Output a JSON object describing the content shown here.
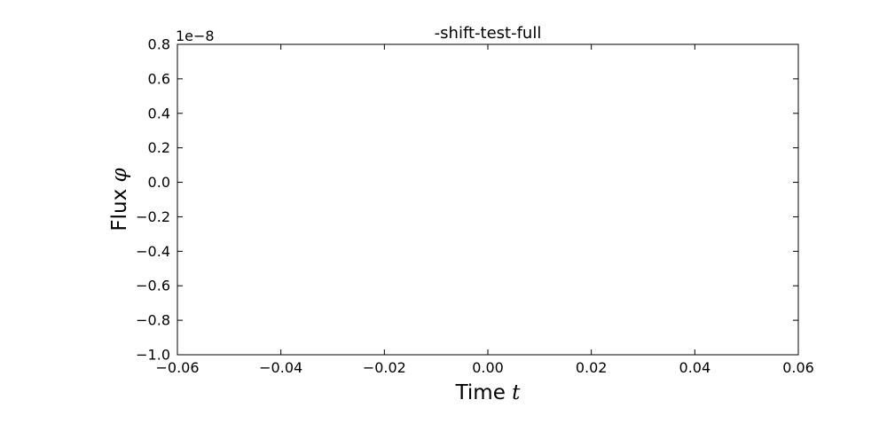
{
  "chart_data": {
    "type": "line",
    "title": "-shift-test-full",
    "xlabel": "Time",
    "xlabel_var": "t",
    "ylabel": "Flux",
    "ylabel_var": "φ",
    "y_offset_label": "1e−8",
    "xlim": [
      -0.06,
      0.06
    ],
    "ylim": [
      -1.0,
      0.8
    ],
    "xticks": [
      -0.06,
      -0.04,
      -0.02,
      0.0,
      0.02,
      0.04,
      0.06
    ],
    "xtick_labels": [
      "−0.06",
      "−0.04",
      "−0.02",
      "0.00",
      "0.02",
      "0.04",
      "0.06"
    ],
    "yticks": [
      -1.0,
      -0.8,
      -0.6,
      -0.4,
      -0.2,
      0.0,
      0.2,
      0.4,
      0.6,
      0.8
    ],
    "ytick_labels": [
      "−1.0",
      "−0.8",
      "−0.6",
      "−0.4",
      "−0.2",
      "0.0",
      "0.2",
      "0.4",
      "0.6",
      "0.8"
    ],
    "grid": false,
    "series": []
  }
}
